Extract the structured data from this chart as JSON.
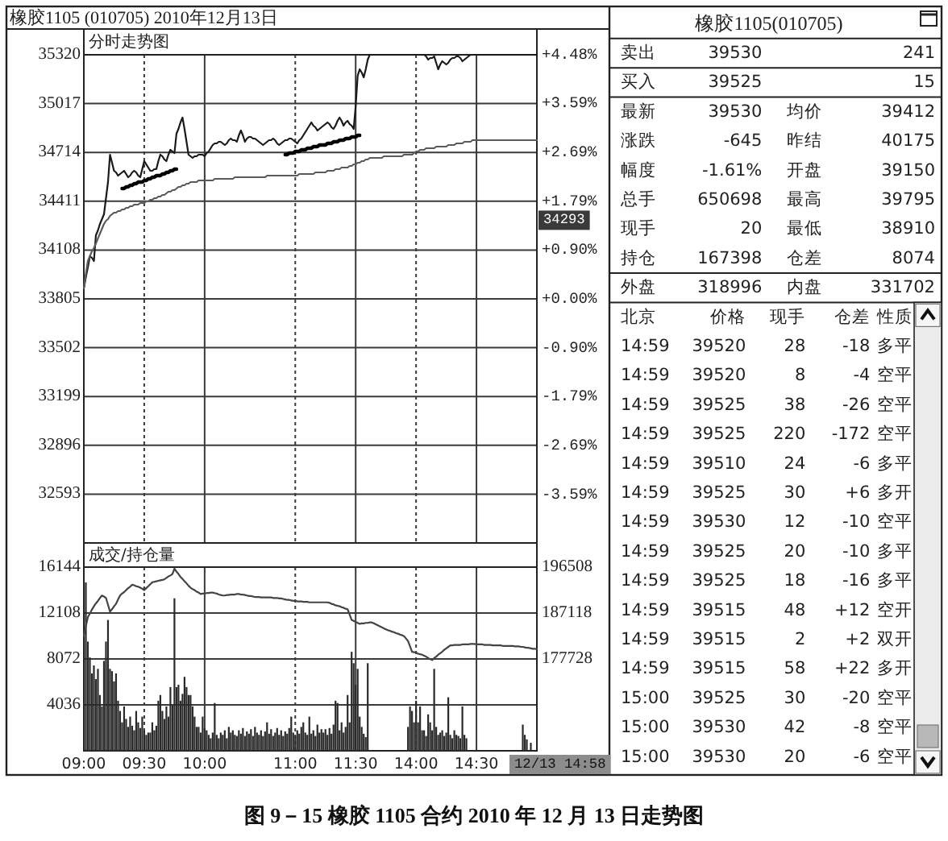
{
  "chart_data": [
    {
      "type": "line",
      "title": "橡胶1105 (010705) 2010年12月13日",
      "subtitle": "分时走势图",
      "categories": [
        null,
        null,
        null,
        null,
        null,
        null,
        null,
        null,
        null,
        null,
        null,
        null,
        null,
        null,
        null,
        null,
        null,
        null,
        null,
        null,
        null,
        null,
        null,
        null,
        null,
        null,
        null,
        null,
        null,
        null,
        null,
        null,
        null,
        null,
        null,
        null,
        null,
        null,
        null,
        null,
        null,
        null,
        null,
        null,
        null,
        null,
        null,
        null,
        null,
        null,
        null,
        null,
        null,
        null,
        null,
        null,
        null,
        null,
        null,
        null,
        null,
        null,
        null,
        null,
        null,
        null,
        null,
        null,
        null,
        null,
        null,
        null,
        null,
        null,
        null,
        null,
        null,
        null,
        null,
        null,
        null,
        null,
        null,
        null,
        null,
        null,
        null,
        null,
        null,
        null,
        null,
        null,
        null,
        null,
        null,
        null,
        null,
        null,
        null,
        null,
        null,
        null,
        null,
        null,
        null,
        null,
        null,
        null,
        null,
        null,
        null,
        null,
        null,
        null,
        null,
        null,
        null,
        null,
        null,
        null,
        null,
        null,
        null,
        null,
        null,
        null,
        null,
        null,
        null,
        null,
        null,
        null,
        null,
        null,
        null,
        null,
        null,
        null,
        null,
        null,
        null,
        null,
        null,
        null,
        null,
        null,
        null,
        null,
        null,
        null,
        null,
        null,
        null,
        null,
        null,
        null,
        null,
        null,
        null,
        null,
        null,
        null,
        null,
        null,
        null,
        null,
        null,
        null,
        null,
        null,
        null,
        null,
        null,
        null,
        null,
        null,
        null,
        null,
        null,
        null,
        null,
        null,
        null,
        null,
        null,
        null,
        null,
        null,
        null,
        null,
        null,
        null,
        null,
        null,
        null,
        null,
        null,
        null,
        null,
        null,
        null,
        null,
        null,
        null,
        null,
        null,
        null,
        null,
        null,
        null,
        null,
        null,
        null,
        null,
        null,
        null,
        null,
        null,
        null,
        null,
        null,
        null,
        null,
        null,
        null,
        null
      ],
      "ylim": [
        32290,
        35320
      ],
      "yticks": [
        35320,
        35017,
        34714,
        34411,
        34108,
        33805,
        33502,
        33199,
        32896,
        32593
      ],
      "y2lim": [
        -4.48,
        4.48
      ],
      "y2ticks": [
        {
          "value": 4.48,
          "label": "+4.48%"
        },
        {
          "value": 3.59,
          "label": "+3.59%"
        },
        {
          "value": 2.69,
          "label": "+2.69%"
        },
        {
          "value": 1.79,
          "label": "+1.79%"
        },
        {
          "value": 0.9,
          "label": "+0.90%"
        },
        {
          "value": 0,
          "label": "+0.00%"
        },
        {
          "value": -0.9,
          "label": "-0.90%"
        },
        {
          "value": -1.79,
          "label": "-1.79%"
        },
        {
          "value": -2.69,
          "label": "-2.69%"
        },
        {
          "value": -3.59,
          "label": "-3.59%"
        }
      ],
      "grid": true,
      "series": [
        {
          "color": "#1a1a1a",
          "values": [
            33870,
            33940,
            34000,
            34070,
            34060,
            34040,
            34200,
            34230,
            34270,
            34300,
            34330,
            34430,
            34530,
            34700,
            34650,
            34600,
            34590,
            34570,
            34580,
            34590,
            34600,
            34580,
            34560,
            34570,
            34590,
            34600,
            34590,
            34570,
            34560,
            34610,
            34660,
            34640,
            34620,
            34600,
            34600,
            34610,
            34610,
            34660,
            34700,
            34690,
            34670,
            34660,
            34700,
            34730,
            34720,
            34710,
            34830,
            34860,
            34900,
            34930,
            34860,
            34780,
            34700,
            34690,
            34680,
            34690,
            34690,
            34700,
            34700,
            34700,
            34690,
            34710,
            34720,
            34740,
            34760,
            34770,
            34770,
            34780,
            34780,
            34770,
            34760,
            34770,
            34790,
            34800,
            34790,
            34790,
            34780,
            34820,
            34850,
            34820,
            34780,
            34800,
            34810,
            34810,
            34800,
            34800,
            34790,
            34780,
            34770,
            34760,
            34770,
            34780,
            34790,
            34790,
            34800,
            34790,
            34770,
            34760,
            34770,
            34780,
            34790,
            34790,
            34800,
            34800,
            34790,
            34780,
            34770,
            34790,
            34800,
            34820,
            34840,
            34860,
            34880,
            34900,
            34880,
            34870,
            34850,
            34860,
            34870,
            34880,
            34890,
            34900,
            34890,
            34870,
            34860,
            34880,
            34910,
            34930,
            34910,
            34880,
            34900,
            34910,
            34890,
            34880,
            34860,
            35000,
            35190,
            35230,
            35210,
            35180,
            35230,
            35290,
            35320,
            35320,
            35320,
            35320,
            35320,
            35320,
            35320,
            35320,
            35320,
            35320,
            35320,
            35320,
            35320,
            35320,
            35320,
            35320,
            35320,
            35320,
            35320,
            35320,
            35320,
            35320,
            35320,
            35320,
            35320,
            35320,
            35320,
            35320,
            35310,
            35290,
            35300,
            35300,
            35310,
            35270,
            35230,
            35260,
            35280,
            35270,
            35260,
            35270,
            35290,
            35300,
            35300,
            35310,
            35310,
            35300,
            35280,
            35290,
            35300,
            35310,
            35320,
            35320,
            35320,
            35320,
            35320,
            35320,
            35320,
            35320,
            35320,
            35320,
            35320,
            35320,
            35320,
            35320,
            35320,
            35320,
            35320,
            35320,
            35320,
            35320,
            35320,
            35320,
            35320,
            35320,
            35320,
            35320,
            35320,
            35320,
            35320,
            35320,
            35320,
            35320,
            35320,
            35320
          ]
        },
        {
          "color": "#5a5a5a",
          "values": [
            33870,
            33960,
            34040,
            34070,
            34100,
            34120,
            34150,
            34180,
            34210,
            34240,
            34270,
            34290,
            34300,
            34320,
            34330,
            34340,
            34340,
            34350,
            34350,
            34360,
            34360,
            34370,
            34370,
            34380,
            34380,
            34390,
            34390,
            34390,
            34400,
            34400,
            34400,
            34410,
            34410,
            34420,
            34420,
            34430,
            34430,
            34440,
            34440,
            34450,
            34450,
            34460,
            34470,
            34470,
            34480,
            34480,
            34490,
            34500,
            34500,
            34510,
            34510,
            34520,
            34520,
            34530,
            34530,
            34530,
            34530,
            34540,
            34540,
            34540,
            34540,
            34540,
            34540,
            34540,
            34540,
            34550,
            34550,
            34550,
            34550,
            34550,
            34550,
            34550,
            34550,
            34550,
            34550,
            34560,
            34560,
            34560,
            34560,
            34560,
            34560,
            34560,
            34560,
            34560,
            34560,
            34560,
            34560,
            34560,
            34560,
            34560,
            34560,
            34570,
            34570,
            34570,
            34570,
            34570,
            34570,
            34570,
            34570,
            34570,
            34570,
            34570,
            34570,
            34570,
            34570,
            34570,
            34570,
            34580,
            34580,
            34580,
            34580,
            34580,
            34580,
            34580,
            34580,
            34590,
            34590,
            34590,
            34590,
            34590,
            34590,
            34600,
            34600,
            34600,
            34600,
            34610,
            34610,
            34610,
            34620,
            34620,
            34620,
            34620,
            34630,
            34630,
            34640,
            34640,
            34650,
            34650,
            34660,
            34660,
            34670,
            34670,
            34680,
            34680,
            34680,
            34680,
            34680,
            34680,
            34680,
            34690,
            34690,
            34690,
            34690,
            34690,
            34690,
            34690,
            34690,
            34690,
            34690,
            34700,
            34700,
            34700,
            34700,
            34700,
            34710,
            34720,
            34720,
            34730,
            34730,
            34730,
            34740,
            34740,
            34740,
            34740,
            34740,
            34750,
            34750,
            34750,
            34750,
            34750,
            34750,
            34760,
            34760,
            34760,
            34760,
            34770,
            34770,
            34770,
            34770,
            34780,
            34780,
            34780,
            34780,
            34790,
            34790,
            34790,
            34790,
            34790,
            34790,
            34790,
            34790,
            34790,
            34790,
            34790,
            34790,
            34790,
            34790,
            34790,
            34790,
            34790,
            34790,
            34790,
            34790,
            34790,
            34790,
            34790,
            34790,
            34790,
            34790,
            34790,
            34790,
            34790,
            34790,
            34790,
            34790,
            34790
          ]
        },
        {
          "color": "#000000",
          "values": [
            null,
            null,
            null,
            null,
            null,
            null,
            null,
            null,
            null,
            null,
            null,
            null,
            null,
            null,
            null,
            null,
            null,
            null,
            null,
            34490,
            34490,
            34500,
            34500,
            34510,
            34510,
            34520,
            34520,
            34530,
            34530,
            34530,
            34540,
            34540,
            34550,
            34550,
            34560,
            34560,
            34570,
            34570,
            34570,
            34580,
            34580,
            34590,
            34590,
            34600,
            34600,
            34610,
            34610,
            null,
            null,
            null,
            null,
            null,
            null,
            null,
            null,
            null,
            null,
            null,
            null,
            null,
            null,
            null,
            null,
            null,
            null,
            null,
            null,
            null,
            null,
            null,
            null,
            null,
            null,
            null,
            null,
            null,
            null,
            null,
            null,
            null,
            null,
            null,
            null,
            null,
            null,
            null,
            null,
            null,
            null,
            null,
            null,
            null,
            null,
            null,
            null,
            null,
            null,
            null,
            null,
            null,
            null,
            null,
            null,
            null,
            null,
            null,
            null,
            null,
            null,
            null,
            null,
            null,
            null,
            null,
            null,
            null,
            null,
            null,
            null,
            null,
            null,
            null,
            null,
            null,
            null,
            null,
            null,
            null,
            null,
            null,
            null,
            null,
            null,
            null,
            null,
            null,
            null,
            null,
            null,
            null,
            null,
            null,
            null,
            null,
            null,
            null,
            null,
            null,
            null,
            null,
            null,
            null,
            null,
            null,
            null,
            null,
            null,
            null,
            null,
            null,
            null,
            null,
            null,
            null,
            null,
            null,
            null,
            null,
            null,
            null,
            null,
            null,
            null,
            null,
            null,
            null,
            null,
            null,
            null,
            null,
            null,
            null,
            null,
            null,
            null,
            null,
            null,
            null,
            null,
            null,
            null,
            null,
            null,
            null,
            null,
            null,
            null,
            null,
            null,
            null,
            null,
            null,
            null,
            null,
            null,
            null,
            null,
            null,
            null,
            null,
            null,
            null,
            null,
            null,
            null,
            null,
            null,
            null,
            null,
            null,
            null,
            null,
            null,
            null,
            null,
            null
          ]
        },
        {
          "color": "#000000",
          "values": [
            null,
            null,
            null,
            null,
            null,
            null,
            null,
            null,
            null,
            null,
            null,
            null,
            null,
            null,
            null,
            null,
            null,
            null,
            null,
            null,
            null,
            null,
            null,
            null,
            null,
            null,
            null,
            null,
            null,
            null,
            null,
            null,
            null,
            null,
            null,
            null,
            null,
            null,
            null,
            null,
            null,
            null,
            null,
            null,
            null,
            null,
            null,
            null,
            null,
            null,
            null,
            null,
            null,
            null,
            null,
            null,
            null,
            null,
            null,
            null,
            null,
            null,
            null,
            null,
            null,
            null,
            null,
            null,
            null,
            null,
            null,
            null,
            null,
            null,
            null,
            null,
            null,
            null,
            null,
            null,
            null,
            null,
            null,
            null,
            null,
            null,
            null,
            null,
            null,
            null,
            null,
            null,
            null,
            null,
            null,
            null,
            null,
            null,
            null,
            null,
            34700,
            34700,
            34710,
            34710,
            34710,
            34720,
            34720,
            34720,
            34730,
            34730,
            34730,
            34740,
            34740,
            34740,
            34750,
            34750,
            34750,
            34760,
            34760,
            34760,
            34760,
            34770,
            34770,
            34770,
            34780,
            34780,
            34780,
            34790,
            34790,
            34790,
            34800,
            34800,
            34800,
            34810,
            34810,
            34810,
            34820,
            34820,
            null,
            null,
            null,
            null,
            null,
            null,
            null,
            null,
            null,
            null,
            null,
            null,
            null,
            null,
            null,
            null,
            null,
            null,
            null,
            null,
            null,
            null,
            null,
            null,
            null,
            null,
            null,
            null,
            null,
            null,
            null,
            null,
            null,
            null,
            null,
            null,
            null,
            null,
            null,
            null,
            null,
            null,
            null,
            null,
            null,
            null,
            null,
            null,
            null,
            null,
            null,
            null,
            null,
            null,
            null,
            null,
            null,
            null,
            null,
            null,
            null,
            null,
            null,
            null,
            null,
            null,
            null,
            null,
            null,
            null,
            null,
            null,
            null,
            null,
            null,
            null,
            null,
            null,
            null,
            null,
            null,
            null,
            null,
            null,
            null,
            null,
            null,
            null
          ]
        }
      ],
      "annotations": [
        {
          "text": "34293",
          "y": 34293
        },
        "图 9－15 橡胶 1105 合约 2010 年 12 月 13 日走势图"
      ]
    },
    {
      "type": "bar",
      "subtitle": "成交/持仓量",
      "categories": [
        "09:00",
        null,
        null,
        null,
        null,
        null,
        null,
        null,
        null,
        null,
        null,
        null,
        null,
        null,
        null,
        null,
        null,
        null,
        null,
        null,
        null,
        null,
        null,
        null,
        null,
        null,
        null,
        null,
        null,
        null,
        "09:30",
        null,
        null,
        null,
        null,
        null,
        null,
        null,
        null,
        null,
        null,
        null,
        null,
        null,
        null,
        null,
        null,
        null,
        null,
        null,
        null,
        null,
        null,
        null,
        null,
        null,
        null,
        null,
        null,
        null,
        "10:00",
        null,
        null,
        null,
        null,
        null,
        null,
        null,
        null,
        null,
        null,
        null,
        null,
        null,
        null,
        null,
        null,
        null,
        null,
        null,
        null,
        null,
        null,
        null,
        null,
        null,
        null,
        null,
        null,
        null,
        null,
        null,
        null,
        null,
        null,
        null,
        null,
        null,
        null,
        null,
        null,
        null,
        null,
        null,
        null,
        "11:00",
        null,
        null,
        null,
        null,
        null,
        null,
        null,
        null,
        null,
        null,
        null,
        null,
        null,
        null,
        null,
        null,
        null,
        null,
        null,
        null,
        null,
        null,
        null,
        null,
        null,
        null,
        null,
        null,
        null,
        "11:30",
        null,
        null,
        null,
        null,
        null,
        null,
        null,
        null,
        null,
        null,
        null,
        null,
        null,
        null,
        null,
        null,
        null,
        null,
        null,
        null,
        null,
        null,
        null,
        null,
        null,
        null,
        null,
        null,
        null,
        "14:00",
        null,
        null,
        null,
        null,
        null,
        null,
        null,
        null,
        null,
        null,
        null,
        null,
        null,
        null,
        null,
        null,
        null,
        null,
        null,
        null,
        null,
        null,
        null,
        null,
        null,
        null,
        null,
        null,
        null,
        "14:30",
        null,
        null,
        null,
        null,
        null,
        null,
        null,
        null,
        null,
        null,
        null,
        null,
        null,
        null,
        null,
        null,
        null,
        null,
        null,
        null,
        null,
        null,
        null,
        null,
        null,
        null,
        null,
        null,
        null,
        null
      ],
      "ylim": [
        0,
        16144
      ],
      "yticks": [
        16144,
        12108,
        8072,
        4036
      ],
      "y2lim": [
        158948,
        196508
      ],
      "y2ticks": [
        196508,
        187118,
        177728
      ],
      "grid": true,
      "series": [
        {
          "type": "bar",
          "color": "#2a2a2a",
          "values": [
            null,
            14800,
            9600,
            8200,
            6800,
            7500,
            6300,
            7200,
            4900,
            3900,
            7900,
            9600,
            11500,
            7200,
            7000,
            6100,
            6800,
            4400,
            3500,
            2500,
            3900,
            2800,
            2100,
            3000,
            2200,
            1800,
            3500,
            2500,
            2000,
            3000,
            1800,
            1400,
            1600,
            1600,
            2500,
            1800,
            2200,
            4400,
            4900,
            3500,
            2800,
            3900,
            3000,
            5600,
            4000,
            13400,
            5600,
            5800,
            4400,
            5000,
            6500,
            5600,
            4900,
            4900,
            3900,
            3000,
            2100,
            2100,
            1600,
            3000,
            2000,
            1800,
            1400,
            1100,
            1600,
            4200,
            1400,
            1100,
            1600,
            1400,
            1800,
            1100,
            2100,
            1600,
            1800,
            1400,
            1300,
            1800,
            1500,
            2000,
            1300,
            1700,
            1500,
            1900,
            1300,
            2100,
            1600,
            1400,
            1800,
            1300,
            1700,
            2500,
            1500,
            1900,
            1300,
            1600,
            2000,
            1400,
            1800,
            1300,
            1700,
            1500,
            2000,
            3000,
            1600,
            1300,
            1800,
            1500,
            2100,
            2500,
            1600,
            1400,
            3000,
            1500,
            1800,
            1300,
            2300,
            1600,
            1900,
            1600,
            1900,
            1400,
            2000,
            1500,
            2300,
            4400,
            4200,
            1800,
            2500,
            1600,
            2100,
            4900,
            2500,
            8700,
            7700,
            5800,
            7200,
            3000,
            2100,
            1500,
            1200,
            7700,
            null,
            null,
            null,
            null,
            null,
            null,
            null,
            null,
            null,
            null,
            null,
            null,
            null,
            null,
            null,
            null,
            null,
            null,
            null,
            2100,
            3900,
            3500,
            2500,
            4400,
            2500,
            3900,
            1800,
            1800,
            1300,
            3200,
            2500,
            1800,
            7200,
            2100,
            1400,
            1600,
            1800,
            1300,
            1600,
            4700,
            1400,
            1100,
            1800,
            1400,
            1300,
            1100,
            3900,
            1400,
            1100,
            null,
            null,
            null,
            null,
            null,
            null,
            null,
            null,
            null,
            null,
            null,
            null,
            null,
            null,
            null,
            null,
            null,
            null,
            null,
            null,
            null,
            null,
            null,
            null,
            null,
            null,
            null,
            2300,
            1400,
            1000,
            null,
            700,
            null,
            null,
            null
          ]
        },
        {
          "type": "line",
          "axis": "y2",
          "color": "#444444",
          "values": [
            182400,
            184400,
            186300,
            187000,
            187800,
            188500,
            189100,
            189600,
            190200,
            190700,
            190500,
            190200,
            188800,
            187400,
            187900,
            188500,
            189000,
            189900,
            190700,
            191100,
            191400,
            191800,
            192200,
            192500,
            192900,
            192800,
            192600,
            192500,
            192300,
            192100,
            191800,
            192200,
            192600,
            193000,
            193400,
            193500,
            193600,
            193700,
            193800,
            193900,
            194000,
            194300,
            194600,
            194800,
            195100,
            196200,
            195600,
            195100,
            194500,
            194100,
            193600,
            193200,
            192700,
            192300,
            192000,
            191800,
            191500,
            191300,
            191000,
            191100,
            191100,
            191200,
            191200,
            191300,
            191300,
            191200,
            191100,
            190900,
            190800,
            190700,
            190700,
            190800,
            190800,
            190900,
            190900,
            190900,
            191000,
            191000,
            190900,
            190900,
            190800,
            190700,
            190600,
            190600,
            190500,
            190400,
            190400,
            190400,
            190300,
            190300,
            190300,
            190300,
            190300,
            190300,
            190200,
            190200,
            190200,
            190100,
            190100,
            190000,
            189900,
            189800,
            189800,
            189700,
            189600,
            189600,
            189500,
            189500,
            189500,
            189400,
            189400,
            189400,
            189300,
            189300,
            189300,
            189300,
            189300,
            189300,
            189300,
            189300,
            189300,
            189300,
            189200,
            189000,
            188900,
            188700,
            188600,
            188500,
            188300,
            188200,
            188000,
            187900,
            186800,
            185700,
            185500,
            185300,
            185100,
            184900,
            185000,
            185000,
            185100,
            185100,
            185200,
            185200,
            185000,
            184800,
            184600,
            184400,
            184200,
            184000,
            183800,
            183600,
            183500,
            183300,
            183200,
            183000,
            182900,
            182700,
            182600,
            182400,
            181900,
            181400,
            180300,
            179200,
            179100,
            179000,
            178800,
            178700,
            178600,
            178400,
            178200,
            177900,
            177700,
            177500,
            177900,
            178200,
            178600,
            178900,
            179200,
            179600,
            179900,
            180200,
            180500,
            180500,
            180600,
            180600,
            180600,
            180600,
            180700,
            180700,
            180700,
            180700,
            180800,
            180800,
            180800,
            180700,
            180700,
            180700,
            180700,
            180600,
            180600,
            180600,
            180600,
            180500,
            180500,
            180500,
            180500,
            180500,
            180400,
            180400,
            180400,
            180400,
            180400,
            180400,
            180300,
            180300,
            180300,
            180200,
            180200,
            180100,
            180000,
            180000,
            179900,
            179800,
            179800,
            179700
          ]
        }
      ],
      "annotations": [
        "12/13 14:58"
      ]
    },
    {
      "type": "other",
      "title": "橡胶1105(010705)",
      "annotations": [
        "卖出 39530 241",
        "买入 39525 15",
        "最新 39530 均价 39412",
        "涨跌 -645 昨结 40175",
        "幅度 -1.61% 开盘 39150",
        "总手 650698 最高 39795",
        "现手 20 最低 38910",
        "持仓 167398 仓差 8074",
        "外盘 318996 内盘 331702",
        "北京 价格 现手 仓差 性质",
        "14:59 39520 28 -18 多平",
        "14:59 39520 8 -4 空平",
        "14:59 39525 38 -26 空平",
        "14:59 39525 220 -172 空平",
        "14:59 39510 24 -6 多平",
        "14:59 39525 30 +6 多开",
        "14:59 39530 12 -10 空平",
        "14:59 39525 20 -10 多平",
        "14:59 39525 18 -16 多平",
        "14:59 39515 48 +12 空开",
        "14:59 39515 2 +2 双开",
        "14:59 39515 58 +22 多开",
        "15:00 39525 30 -20 空平",
        "15:00 39530 42 -8 空平",
        "15:00 39530 20 -6 空平"
      ]
    }
  ]
}
